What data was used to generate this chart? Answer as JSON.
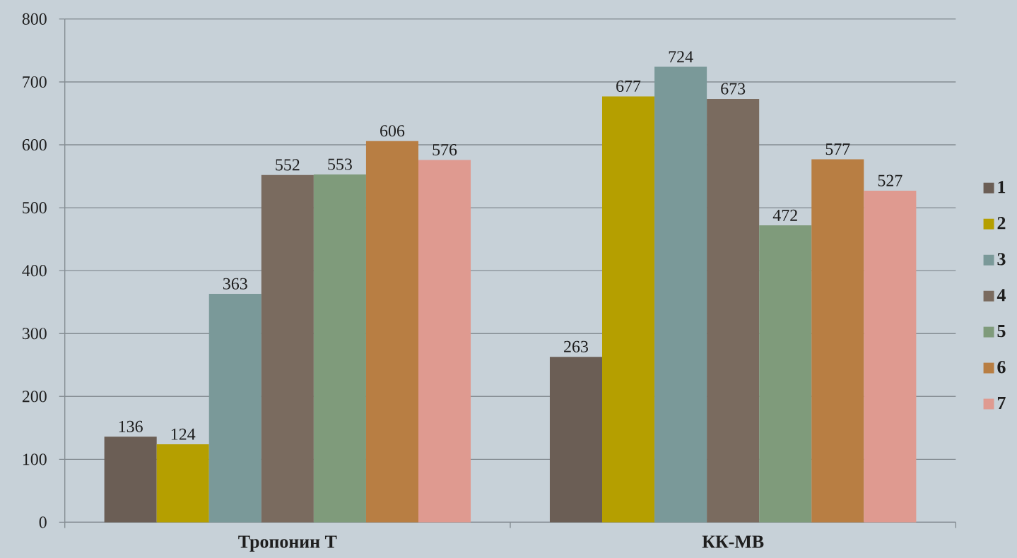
{
  "chart_data": {
    "type": "bar",
    "categories": [
      "Тропонин Т",
      "КК-МВ"
    ],
    "series": [
      {
        "name": "1",
        "color": "#6b5e55",
        "values": [
          136,
          263
        ]
      },
      {
        "name": "2",
        "color": "#b59f00",
        "values": [
          124,
          677
        ]
      },
      {
        "name": "3",
        "color": "#7a9999",
        "values": [
          363,
          724
        ]
      },
      {
        "name": "4",
        "color": "#7a6b5f",
        "values": [
          552,
          673
        ]
      },
      {
        "name": "5",
        "color": "#7f9b7b",
        "values": [
          553,
          472
        ]
      },
      {
        "name": "6",
        "color": "#b87e43",
        "values": [
          606,
          577
        ]
      },
      {
        "name": "7",
        "color": "#df9a90",
        "values": [
          576,
          527
        ]
      }
    ],
    "ylim": [
      0,
      800
    ],
    "yticks": [
      0,
      100,
      200,
      300,
      400,
      500,
      600,
      700,
      800
    ],
    "grid": "y",
    "legend": "right",
    "data_labels": true
  }
}
